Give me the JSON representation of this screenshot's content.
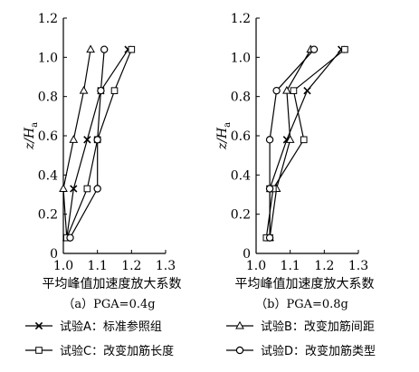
{
  "chart_data": [
    {
      "type": "line",
      "caption": "（a）PGA=0.4g",
      "xlabel": "平均峰值加速度放大系数",
      "ylabel": "z/H",
      "ylabel_sub": "a",
      "xlim": [
        1.0,
        1.3
      ],
      "ylim": [
        0,
        1.2
      ],
      "xticks": [
        "1.0",
        "1.1",
        "1.2",
        "1.3"
      ],
      "yticks": [
        "0",
        "0.2",
        "0.4",
        "0.6",
        "0.8",
        "1.0",
        "1.2"
      ],
      "series": [
        {
          "name": "试验A：标准参照组",
          "marker": "x",
          "points": [
            [
              1.01,
              0.08
            ],
            [
              1.03,
              0.33
            ],
            [
              1.07,
              0.58
            ],
            [
              1.11,
              0.83
            ],
            [
              1.19,
              1.04
            ]
          ]
        },
        {
          "name": "试验B：改变加筋间距",
          "marker": "triangle",
          "points": [
            [
              1.01,
              0.08
            ],
            [
              1.0,
              0.33
            ],
            [
              1.03,
              0.58
            ],
            [
              1.06,
              0.83
            ],
            [
              1.08,
              1.04
            ]
          ]
        },
        {
          "name": "试验C：改变加筋长度",
          "marker": "square",
          "points": [
            [
              1.01,
              0.08
            ],
            [
              1.07,
              0.33
            ],
            [
              1.1,
              0.58
            ],
            [
              1.15,
              0.83
            ],
            [
              1.2,
              1.04
            ]
          ]
        },
        {
          "name": "试验D：改变加筋类型",
          "marker": "circle",
          "points": [
            [
              1.02,
              0.08
            ],
            [
              1.1,
              0.33
            ],
            [
              1.1,
              0.58
            ],
            [
              1.11,
              0.83
            ],
            [
              1.12,
              1.04
            ]
          ]
        }
      ]
    },
    {
      "type": "line",
      "caption": "（b）PGA=0.8g",
      "xlabel": "平均峰值加速度放大系数",
      "ylabel": "z/H",
      "ylabel_sub": "a",
      "xlim": [
        1.0,
        1.3
      ],
      "ylim": [
        0,
        1.2
      ],
      "xticks": [
        "1.0",
        "1.1",
        "1.2",
        "1.3"
      ],
      "yticks": [
        "0",
        "0.2",
        "0.4",
        "0.6",
        "0.8",
        "1.0",
        "1.2"
      ],
      "series": [
        {
          "name": "试验A：标准参照组",
          "marker": "x",
          "points": [
            [
              1.04,
              0.08
            ],
            [
              1.04,
              0.33
            ],
            [
              1.09,
              0.58
            ],
            [
              1.15,
              0.83
            ],
            [
              1.25,
              1.04
            ]
          ]
        },
        {
          "name": "试验B：改变加筋间距",
          "marker": "triangle",
          "points": [
            [
              1.04,
              0.08
            ],
            [
              1.06,
              0.33
            ],
            [
              1.1,
              0.58
            ],
            [
              1.09,
              0.83
            ],
            [
              1.16,
              1.04
            ]
          ]
        },
        {
          "name": "试验C：改变加筋长度",
          "marker": "square",
          "points": [
            [
              1.03,
              0.08
            ],
            [
              1.05,
              0.33
            ],
            [
              1.14,
              0.58
            ],
            [
              1.11,
              0.83
            ],
            [
              1.26,
              1.04
            ]
          ]
        },
        {
          "name": "试验D：改变加筋类型",
          "marker": "circle",
          "points": [
            [
              1.04,
              0.08
            ],
            [
              1.04,
              0.33
            ],
            [
              1.04,
              0.58
            ],
            [
              1.06,
              0.83
            ],
            [
              1.17,
              1.04
            ]
          ]
        }
      ]
    }
  ],
  "legend": [
    {
      "label": "试验A：标准参照组",
      "marker": "x"
    },
    {
      "label": "试验B：改变加筋间距",
      "marker": "triangle"
    },
    {
      "label": "试验C：改变加筋长度",
      "marker": "square"
    },
    {
      "label": "试验D：改变加筋类型",
      "marker": "circle"
    }
  ]
}
